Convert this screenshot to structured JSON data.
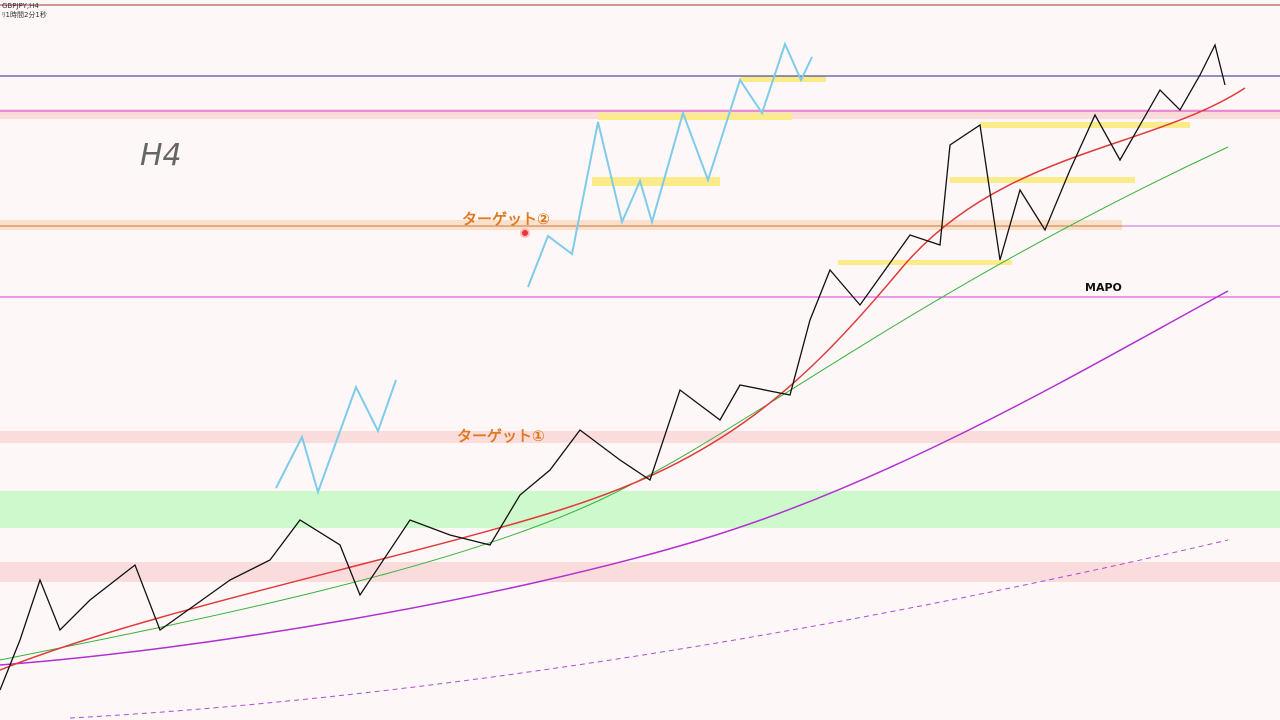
{
  "header": {
    "symbol": "GBPJPY,H4",
    "timer": "ﾘ1時間2分1秒"
  },
  "chart": {
    "timeframe": "H4",
    "target_2": "ターゲット②",
    "target_1": "ターゲット①",
    "watermark": "MAPO"
  }
}
